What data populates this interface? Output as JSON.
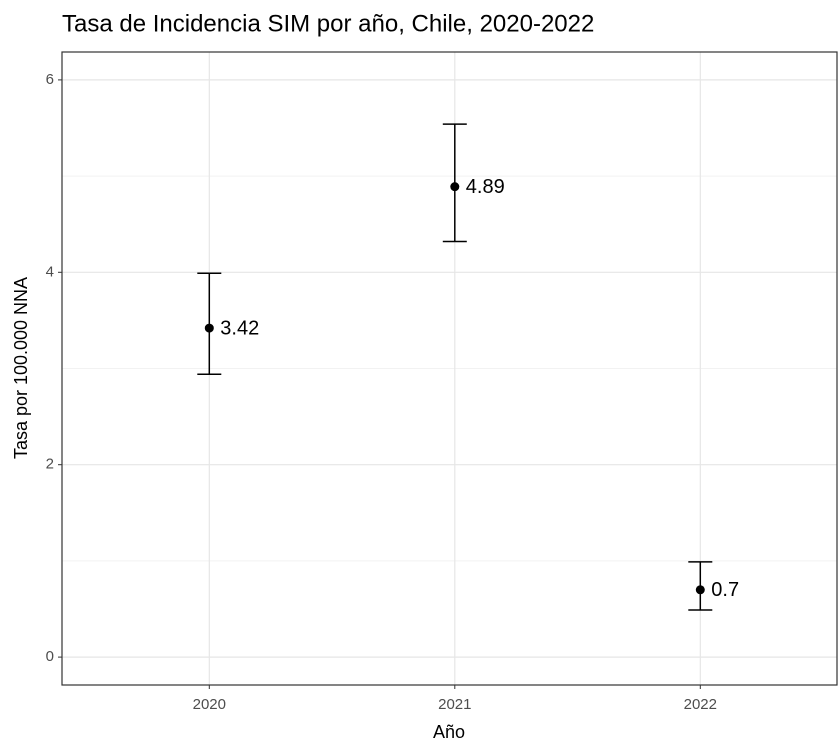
{
  "chart_data": {
    "type": "errorpoint",
    "title": "Tasa de Incidencia SIM por año, Chile, 2020-2022",
    "x_label": "Año",
    "y_label": "Tasa por 100.000 NNA",
    "categories": [
      "2020",
      "2021",
      "2022"
    ],
    "values": [
      3.42,
      4.89,
      0.7
    ],
    "lower": [
      2.94,
      4.32,
      0.49
    ],
    "upper": [
      3.99,
      5.54,
      0.99
    ],
    "color": "#000000",
    "ylim": [
      -0.29,
      6.29
    ],
    "yticks": [
      0,
      2,
      4,
      6
    ],
    "minor_yticks": [
      1,
      3,
      5
    ],
    "grid": true
  }
}
